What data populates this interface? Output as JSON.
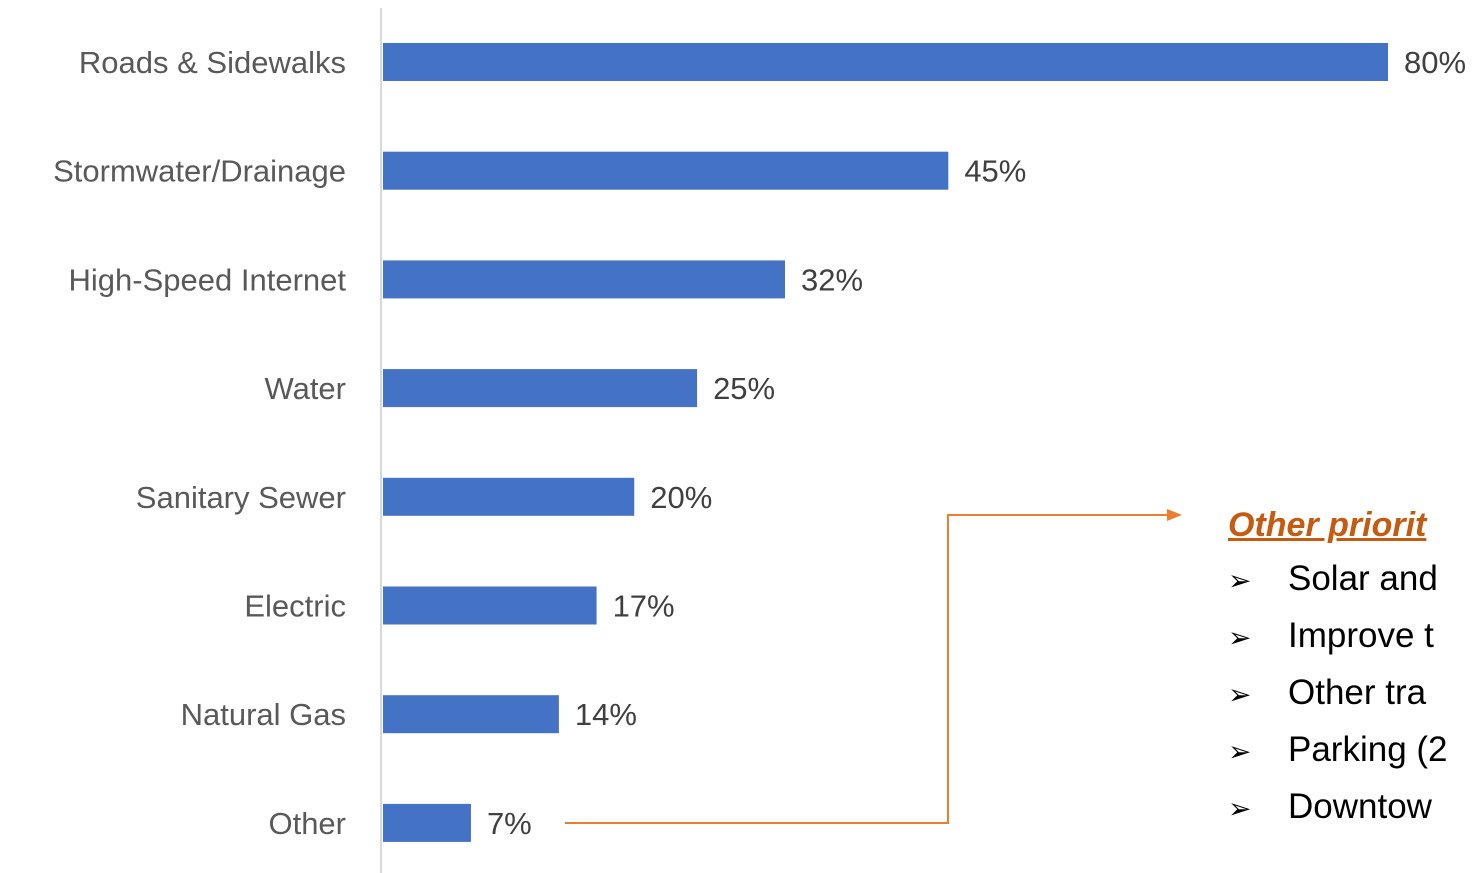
{
  "chart_data": {
    "type": "bar",
    "orientation": "horizontal",
    "categories": [
      "Roads & Sidewalks",
      "Stormwater/Drainage",
      "High-Speed Internet",
      "Water",
      "Sanitary Sewer",
      "Electric",
      "Natural Gas",
      "Other"
    ],
    "values": [
      80,
      45,
      32,
      25,
      20,
      17,
      14,
      7
    ],
    "data_labels": [
      "80%",
      "45%",
      "32%",
      "25%",
      "20%",
      "17%",
      "14%",
      "7%"
    ],
    "title": "",
    "xlabel": "",
    "ylabel": "",
    "xlim": [
      0,
      80
    ],
    "grid": false,
    "legend": "none",
    "bar_color": "#4472c4"
  },
  "callout": {
    "title": "Other priorit",
    "items": [
      "Solar and",
      "Improve t",
      "Other tra",
      "Parking (2",
      "Downtow"
    ],
    "bullet_icon": "arrow-bullet-icon",
    "connector_color": "#ed7d31"
  }
}
